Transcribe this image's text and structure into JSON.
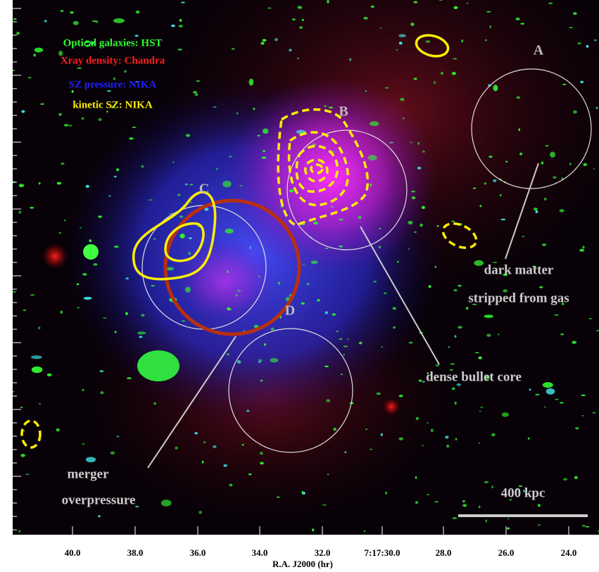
{
  "legend": [
    "Optical galaxies: HST",
    "Xray density: Chandra",
    "SZ pressure: NIKA",
    "kinetic SZ: NIKA"
  ],
  "regions": [
    "A",
    "B",
    "C",
    "D"
  ],
  "annotations": {
    "dark_matter": [
      "dark matter",
      "stripped from gas"
    ],
    "bullet": "dense bullet core",
    "merger": [
      "merger",
      "overpressure"
    ]
  },
  "scale_bar": "400 kpc",
  "x_axis": {
    "ticks": [
      "40.0",
      "38.0",
      "36.0",
      "34.0",
      "32.0",
      "7:17:30.0",
      "28.0",
      "26.0",
      "24.0"
    ],
    "label": "R.A. J2000 (hr)"
  }
}
